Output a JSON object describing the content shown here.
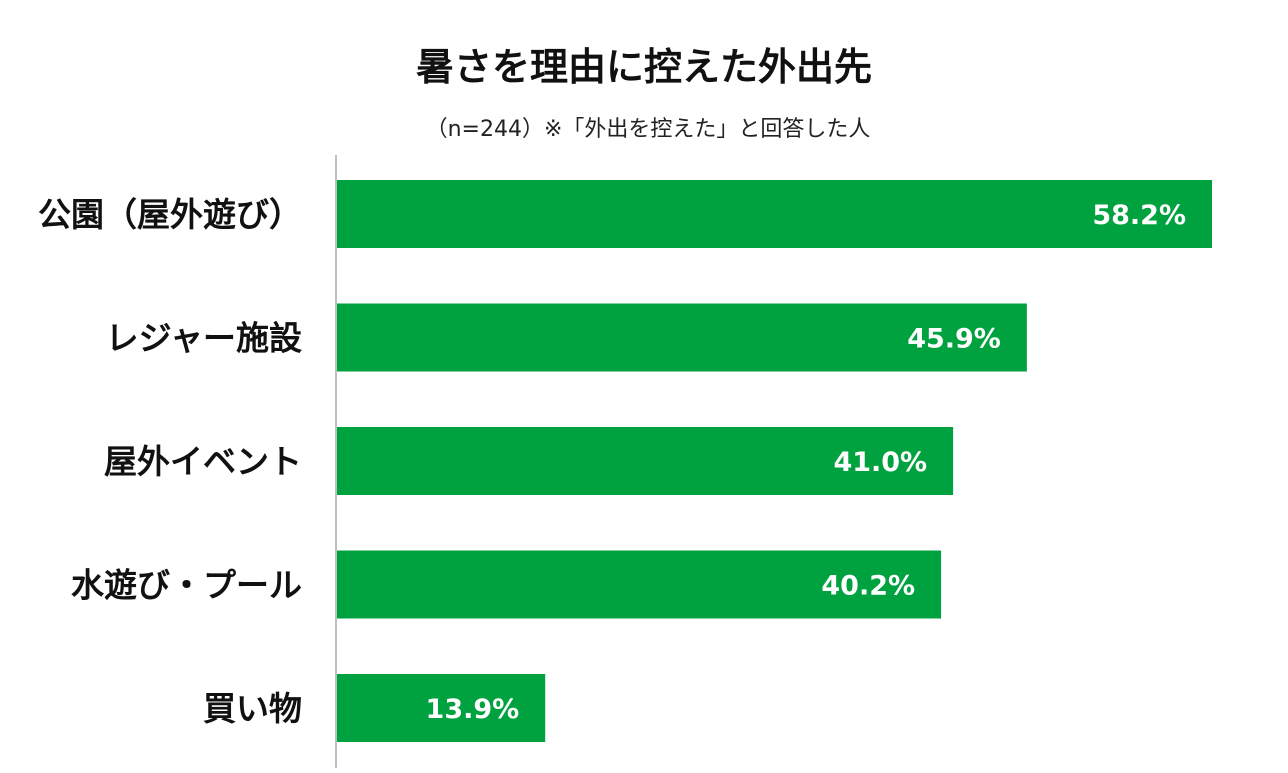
{
  "chart_data": {
    "type": "bar",
    "orientation": "horizontal",
    "title": "暑さを理由に控えた外出先",
    "subtitle": "（n=244）※「外出を控えた」と回答した人",
    "categories": [
      "公園（屋外遊び）",
      "レジャー施設",
      "屋外イベント",
      "水遊び・プール",
      "買い物"
    ],
    "values": [
      58.2,
      45.9,
      41.0,
      40.2,
      13.9
    ],
    "value_labels": [
      "58.2%",
      "45.9%",
      "41.0%",
      "40.2%",
      "13.9%"
    ],
    "xlim": [
      0,
      60
    ],
    "grid": false,
    "legend": "none",
    "bar_color": "#00a23f",
    "axis_color": "#bfbfbf"
  }
}
